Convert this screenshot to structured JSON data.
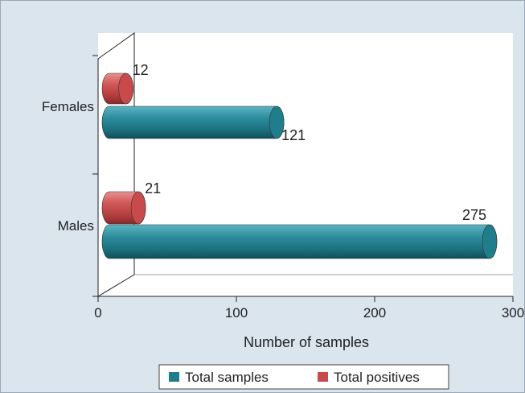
{
  "chart_data": {
    "type": "bar",
    "orientation": "horizontal",
    "style": "3d-cylinder",
    "categories": [
      "Females",
      "Males"
    ],
    "series": [
      {
        "name": "Total samples",
        "values": [
          121,
          275
        ],
        "color": "#1f7d8c"
      },
      {
        "name": "Total positives",
        "values": [
          12,
          21
        ],
        "color": "#c94a4a"
      }
    ],
    "xlabel": "Number of samples",
    "xlim": [
      0,
      300
    ],
    "xticks": [
      0,
      100,
      200,
      300
    ],
    "grid": false,
    "legend": {
      "placement": "bottom-center"
    }
  }
}
